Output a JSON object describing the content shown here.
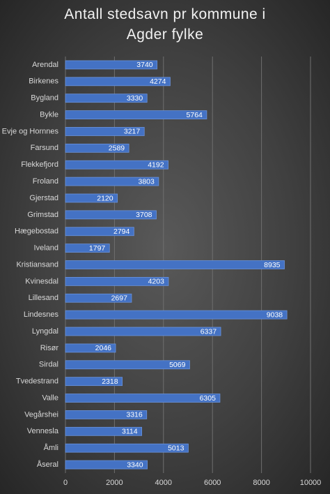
{
  "chart_data": {
    "type": "barh",
    "title": "Antall stedsavn pr kommune i Agder fylke",
    "categories": [
      "Arendal",
      "Birkenes",
      "Bygland",
      "Bykle",
      "Evje og Hornnes",
      "Farsund",
      "Flekkefjord",
      "Froland",
      "Gjerstad",
      "Grimstad",
      "Hægebostad",
      "Iveland",
      "Kristiansand",
      "Kvinesdal",
      "Lillesand",
      "Lindesnes",
      "Lyngdal",
      "Risør",
      "Sirdal",
      "Tvedestrand",
      "Valle",
      "Vegårshei",
      "Vennesla",
      "Åmli",
      "Åseral"
    ],
    "values": [
      3740,
      4274,
      3330,
      5764,
      3217,
      2589,
      4192,
      3803,
      2120,
      3708,
      2794,
      1797,
      8935,
      4203,
      2697,
      9038,
      6337,
      2046,
      5069,
      2318,
      6305,
      3316,
      3114,
      5013,
      3340
    ],
    "color": "#4472c4",
    "xlim": [
      0,
      10000
    ],
    "xticks": [
      0,
      2000,
      4000,
      6000,
      8000,
      10000
    ],
    "grid": true
  }
}
